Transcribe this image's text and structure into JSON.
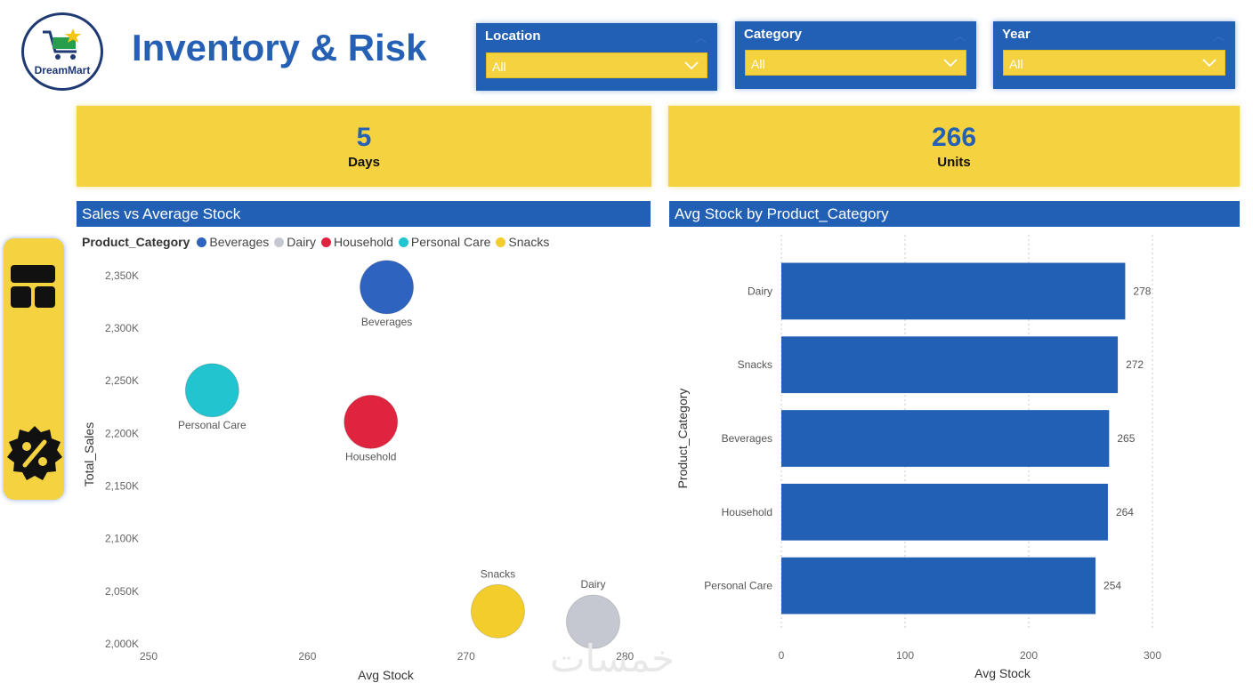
{
  "header": {
    "logo_text": "DreamMart",
    "title": "Inventory & Risk"
  },
  "slicers": [
    {
      "label": "Location",
      "value": "All"
    },
    {
      "label": "Category",
      "value": "All"
    },
    {
      "label": "Year",
      "value": "All"
    }
  ],
  "kpis": [
    {
      "value": "5",
      "label": "Days"
    },
    {
      "value": "266",
      "label": "Units"
    }
  ],
  "nav": {
    "items": [
      {
        "icon": "dashboard-grid-icon"
      },
      {
        "icon": "discount-badge-icon"
      }
    ]
  },
  "colors": {
    "accent_blue": "#2260b5",
    "kpi_yellow": "#f5d23f",
    "Beverages": "#2f63c0",
    "Dairy": "#c5c8d0",
    "Household": "#e0243f",
    "Personal Care": "#21c4cf",
    "Snacks": "#f3cd2c"
  },
  "watermark": "خمسات",
  "chart_data": [
    {
      "type": "scatter",
      "title": "Sales vs Average Stock",
      "legend_title": "Product_Category",
      "legend": [
        "Beverages",
        "Dairy",
        "Household",
        "Personal Care",
        "Snacks"
      ],
      "xlabel": "Avg Stock",
      "ylabel": "Total_Sales",
      "xlim": [
        250,
        281
      ],
      "ylim": [
        2000,
        2360
      ],
      "x_ticks": [
        250,
        260,
        270,
        280
      ],
      "y_ticks": [
        2000,
        2050,
        2100,
        2150,
        2200,
        2250,
        2300,
        2350
      ],
      "y_tick_labels": [
        "2,000K",
        "2,050K",
        "2,100K",
        "2,150K",
        "2,200K",
        "2,250K",
        "2,300K",
        "2,350K"
      ],
      "points": [
        {
          "category": "Beverages",
          "x": 265,
          "y": 2339
        },
        {
          "category": "Personal Care",
          "x": 254,
          "y": 2241
        },
        {
          "category": "Household",
          "x": 264,
          "y": 2211
        },
        {
          "category": "Snacks",
          "x": 272,
          "y": 2031
        },
        {
          "category": "Dairy",
          "x": 278,
          "y": 2021
        }
      ]
    },
    {
      "type": "bar",
      "orientation": "horizontal",
      "title": "Avg Stock by Product_Category",
      "xlabel": "Avg Stock",
      "ylabel": "Product_Category",
      "xlim": [
        0,
        300
      ],
      "x_ticks": [
        0,
        100,
        200,
        300
      ],
      "categories": [
        "Dairy",
        "Snacks",
        "Beverages",
        "Household",
        "Personal Care"
      ],
      "values": [
        278,
        272,
        265,
        264,
        254
      ],
      "grid": true
    }
  ]
}
